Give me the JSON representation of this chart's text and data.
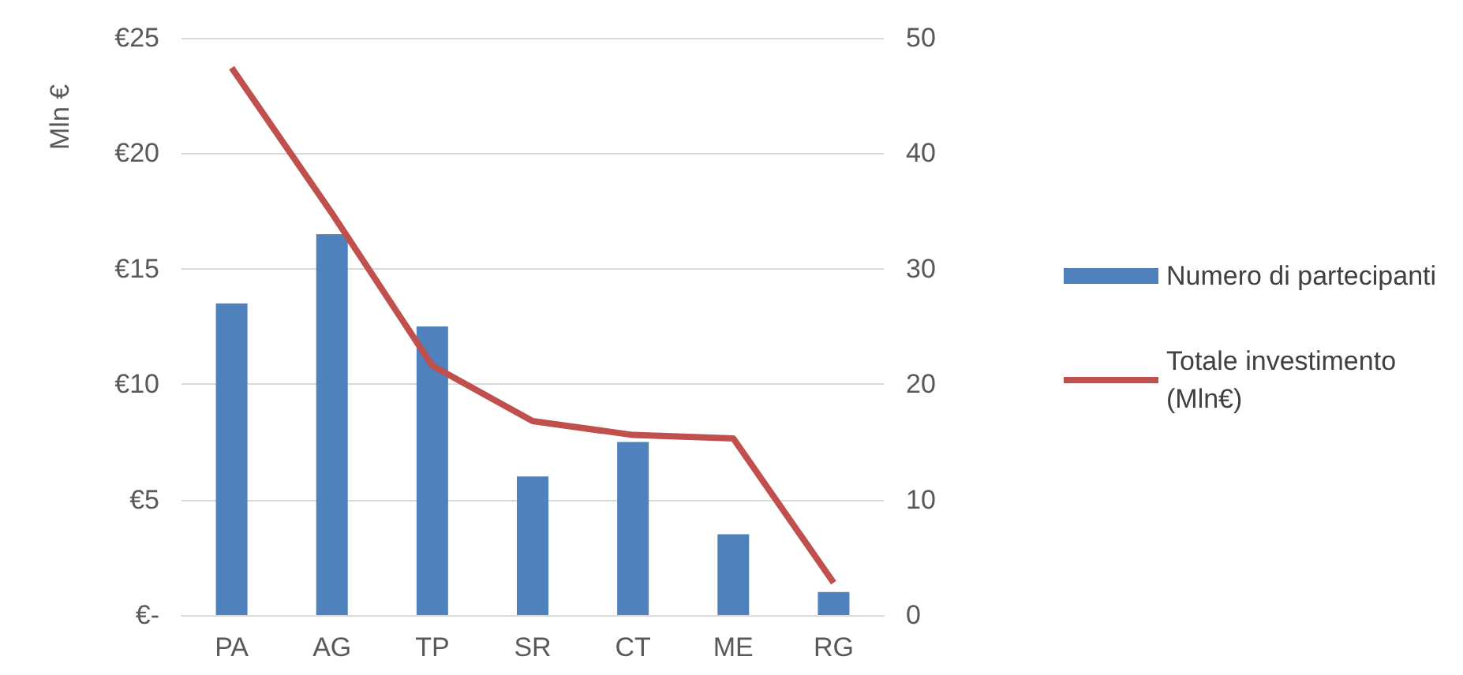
{
  "chart_data": {
    "type": "bar",
    "categories": [
      "PA",
      "AG",
      "TP",
      "SR",
      "CT",
      "ME",
      "RG"
    ],
    "series": [
      {
        "name": "Numero di partecipanti",
        "axis": "y2",
        "color": "#4f81bd",
        "values": [
          27,
          33,
          25,
          12,
          15,
          7,
          2
        ]
      },
      {
        "name": "Totale investimento (Mln€)",
        "type": "line",
        "color": "#c0504d",
        "values": [
          23.7,
          17.4,
          10.8,
          8.4,
          7.8,
          7.65,
          1.4
        ]
      }
    ],
    "ylabel": "Mln €",
    "ylim": [
      0,
      25
    ],
    "yticks": [
      {
        "value": 0,
        "label": "€-"
      },
      {
        "value": 5,
        "label": "€5"
      },
      {
        "value": 10,
        "label": "€10"
      },
      {
        "value": 15,
        "label": "€15"
      },
      {
        "value": 20,
        "label": "€20"
      },
      {
        "value": 25,
        "label": "€25"
      }
    ],
    "y2lim": [
      0,
      50
    ],
    "y2ticks": [
      0,
      10,
      20,
      30,
      40,
      50
    ],
    "grid": true,
    "legend": "right",
    "marker": "none",
    "line_style": "solid"
  }
}
